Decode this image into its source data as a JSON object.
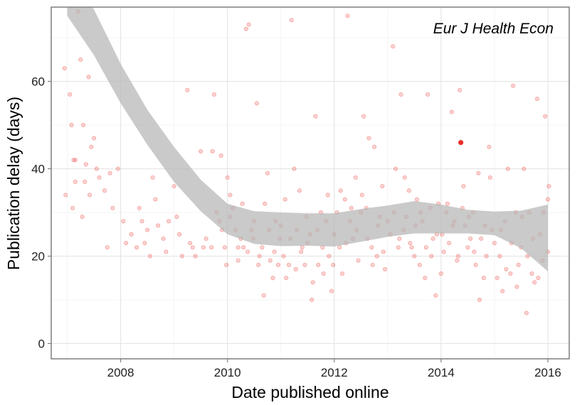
{
  "chart_data": {
    "type": "scatter",
    "xlabel": "Date published online",
    "ylabel": "Publication delay (days)",
    "annotation": "Eur J Health Econ",
    "xlim": [
      2006.7,
      2016.4
    ],
    "ylim": [
      -3.5,
      77
    ],
    "x_ticks": [
      2008,
      2010,
      2012,
      2014,
      2016
    ],
    "y_ticks": [
      0,
      20,
      40,
      60
    ],
    "grid": true,
    "legend": "none",
    "point_color": "#e8302a",
    "band_color": "#b5b5b5",
    "highlight_point": {
      "x": 2014.37,
      "y": 46
    },
    "smooth_band": {
      "x": [
        2007.0,
        2007.5,
        2008.0,
        2008.5,
        2009.0,
        2009.5,
        2010.0,
        2010.5,
        2011.0,
        2011.5,
        2012.0,
        2012.5,
        2013.0,
        2013.5,
        2014.0,
        2014.5,
        2015.0,
        2015.5,
        2016.0
      ],
      "upper": [
        86,
        76.5,
        64,
        53.5,
        45,
        37.5,
        32,
        30.3,
        30,
        29.8,
        29.8,
        30.8,
        31.6,
        32.6,
        31.8,
        30.6,
        30.2,
        30.4,
        31.8
      ],
      "lower": [
        75,
        66,
        55,
        45.5,
        37,
        30.3,
        25,
        22.8,
        22.3,
        22.4,
        22.2,
        23.3,
        24.4,
        25.2,
        25.2,
        25.2,
        24.8,
        21.8,
        16.5
      ]
    },
    "points": [
      [
        2006.95,
        63
      ],
      [
        2007.05,
        57
      ],
      [
        2007.08,
        50
      ],
      [
        2007.12,
        42
      ],
      [
        2007.15,
        37
      ],
      [
        2007.2,
        76
      ],
      [
        2007.25,
        65
      ],
      [
        2007.3,
        50
      ],
      [
        2007.35,
        41
      ],
      [
        2007.4,
        61
      ],
      [
        2007.45,
        45
      ],
      [
        2007.5,
        47
      ],
      [
        2007.55,
        40
      ],
      [
        2007.6,
        38
      ],
      [
        2007.7,
        35
      ],
      [
        2007.75,
        22
      ],
      [
        2007.8,
        39
      ],
      [
        2007.85,
        31
      ],
      [
        2007.95,
        40
      ],
      [
        2006.97,
        34
      ],
      [
        2007.1,
        31
      ],
      [
        2007.15,
        42
      ],
      [
        2007.28,
        29
      ],
      [
        2007.33,
        37
      ],
      [
        2007.42,
        34
      ],
      [
        2008.05,
        28
      ],
      [
        2008.1,
        23
      ],
      [
        2008.2,
        25
      ],
      [
        2008.3,
        22
      ],
      [
        2008.4,
        28
      ],
      [
        2008.5,
        26
      ],
      [
        2008.55,
        20
      ],
      [
        2008.6,
        38
      ],
      [
        2008.7,
        27
      ],
      [
        2008.8,
        24
      ],
      [
        2008.9,
        28
      ],
      [
        2009.0,
        36
      ],
      [
        2009.05,
        29
      ],
      [
        2009.1,
        25
      ],
      [
        2009.15,
        20
      ],
      [
        2009.25,
        58
      ],
      [
        2008.35,
        31
      ],
      [
        2008.45,
        23
      ],
      [
        2008.65,
        33
      ],
      [
        2008.85,
        21
      ],
      [
        2009.3,
        23
      ],
      [
        2009.35,
        22
      ],
      [
        2009.4,
        20
      ],
      [
        2009.5,
        44
      ],
      [
        2009.6,
        24
      ],
      [
        2009.7,
        22
      ],
      [
        2009.75,
        57
      ],
      [
        2009.8,
        30
      ],
      [
        2009.85,
        28
      ],
      [
        2009.9,
        26
      ],
      [
        2009.95,
        22
      ],
      [
        2009.98,
        18
      ],
      [
        2009.72,
        44
      ],
      [
        2009.88,
        43
      ],
      [
        2009.55,
        22
      ],
      [
        2010.0,
        38
      ],
      [
        2010.05,
        29
      ],
      [
        2010.1,
        31
      ],
      [
        2010.15,
        26
      ],
      [
        2010.2,
        19
      ],
      [
        2010.25,
        24
      ],
      [
        2010.3,
        22
      ],
      [
        2010.35,
        72
      ],
      [
        2010.4,
        73
      ],
      [
        2010.45,
        26
      ],
      [
        2010.5,
        28
      ],
      [
        2010.55,
        55
      ],
      [
        2010.6,
        20
      ],
      [
        2010.65,
        22
      ],
      [
        2010.7,
        32
      ],
      [
        2010.75,
        39
      ],
      [
        2010.8,
        19
      ],
      [
        2010.85,
        15
      ],
      [
        2010.9,
        28
      ],
      [
        2010.95,
        18
      ],
      [
        2010.05,
        34
      ],
      [
        2010.2,
        22
      ],
      [
        2010.28,
        32
      ],
      [
        2010.38,
        21
      ],
      [
        2010.48,
        24
      ],
      [
        2010.58,
        18
      ],
      [
        2010.68,
        11
      ],
      [
        2010.78,
        26
      ],
      [
        2010.88,
        21
      ],
      [
        2010.98,
        24
      ],
      [
        2011.0,
        27
      ],
      [
        2011.05,
        20
      ],
      [
        2011.1,
        15
      ],
      [
        2011.15,
        18
      ],
      [
        2011.2,
        74
      ],
      [
        2011.25,
        40
      ],
      [
        2011.3,
        26
      ],
      [
        2011.35,
        35
      ],
      [
        2011.4,
        22
      ],
      [
        2011.45,
        18
      ],
      [
        2011.5,
        23
      ],
      [
        2011.55,
        25
      ],
      [
        2011.6,
        14
      ],
      [
        2011.65,
        52
      ],
      [
        2011.7,
        18
      ],
      [
        2011.75,
        30
      ],
      [
        2011.8,
        16
      ],
      [
        2011.85,
        28
      ],
      [
        2011.9,
        20
      ],
      [
        2011.95,
        12
      ],
      [
        2011.08,
        33
      ],
      [
        2011.18,
        24
      ],
      [
        2011.28,
        17
      ],
      [
        2011.38,
        21
      ],
      [
        2011.48,
        29
      ],
      [
        2011.58,
        10
      ],
      [
        2011.68,
        26
      ],
      [
        2011.78,
        22
      ],
      [
        2011.88,
        34
      ],
      [
        2011.98,
        18
      ],
      [
        2012.0,
        25
      ],
      [
        2012.05,
        30
      ],
      [
        2012.1,
        22
      ],
      [
        2012.15,
        16
      ],
      [
        2012.2,
        33
      ],
      [
        2012.25,
        75
      ],
      [
        2012.3,
        28
      ],
      [
        2012.35,
        24
      ],
      [
        2012.4,
        38
      ],
      [
        2012.45,
        19
      ],
      [
        2012.5,
        30
      ],
      [
        2012.55,
        52
      ],
      [
        2012.6,
        31
      ],
      [
        2012.65,
        47
      ],
      [
        2012.7,
        22
      ],
      [
        2012.75,
        45
      ],
      [
        2012.8,
        20
      ],
      [
        2012.85,
        29
      ],
      [
        2012.9,
        36
      ],
      [
        2012.95,
        17
      ],
      [
        2012.12,
        35
      ],
      [
        2012.22,
        23
      ],
      [
        2012.32,
        31
      ],
      [
        2012.42,
        26
      ],
      [
        2012.52,
        34
      ],
      [
        2012.62,
        24
      ],
      [
        2012.72,
        18
      ],
      [
        2012.82,
        27
      ],
      [
        2012.92,
        21
      ],
      [
        2013.0,
        28
      ],
      [
        2013.05,
        25
      ],
      [
        2013.1,
        68
      ],
      [
        2013.15,
        40
      ],
      [
        2013.2,
        22
      ],
      [
        2013.25,
        57
      ],
      [
        2013.3,
        26
      ],
      [
        2013.35,
        29
      ],
      [
        2013.4,
        35
      ],
      [
        2013.45,
        22
      ],
      [
        2013.5,
        20
      ],
      [
        2013.55,
        33
      ],
      [
        2013.6,
        18
      ],
      [
        2013.65,
        28
      ],
      [
        2013.7,
        15
      ],
      [
        2013.75,
        57
      ],
      [
        2013.8,
        31
      ],
      [
        2013.85,
        24
      ],
      [
        2013.9,
        11
      ],
      [
        2013.95,
        32
      ],
      [
        2013.12,
        30
      ],
      [
        2013.22,
        24
      ],
      [
        2013.32,
        38
      ],
      [
        2013.42,
        23
      ],
      [
        2013.52,
        27
      ],
      [
        2013.62,
        30
      ],
      [
        2013.72,
        22
      ],
      [
        2013.82,
        20
      ],
      [
        2013.92,
        25
      ],
      [
        2014.0,
        16
      ],
      [
        2014.05,
        21
      ],
      [
        2014.1,
        30
      ],
      [
        2014.15,
        23
      ],
      [
        2014.2,
        53
      ],
      [
        2014.25,
        28
      ],
      [
        2014.3,
        19
      ],
      [
        2014.35,
        58
      ],
      [
        2014.4,
        31
      ],
      [
        2014.45,
        27
      ],
      [
        2014.5,
        22
      ],
      [
        2014.55,
        24
      ],
      [
        2014.6,
        30
      ],
      [
        2014.65,
        18
      ],
      [
        2014.7,
        39
      ],
      [
        2014.75,
        24
      ],
      [
        2014.8,
        15
      ],
      [
        2014.85,
        20
      ],
      [
        2014.9,
        45
      ],
      [
        2014.95,
        26
      ],
      [
        2014.02,
        25
      ],
      [
        2014.12,
        32
      ],
      [
        2014.22,
        27
      ],
      [
        2014.32,
        20
      ],
      [
        2014.42,
        36
      ],
      [
        2014.52,
        29
      ],
      [
        2014.62,
        21
      ],
      [
        2014.72,
        10
      ],
      [
        2014.82,
        27
      ],
      [
        2014.92,
        38
      ],
      [
        2015.0,
        23
      ],
      [
        2015.05,
        15
      ],
      [
        2015.1,
        20
      ],
      [
        2015.15,
        12
      ],
      [
        2015.2,
        28
      ],
      [
        2015.25,
        40
      ],
      [
        2015.3,
        16
      ],
      [
        2015.35,
        59
      ],
      [
        2015.4,
        30
      ],
      [
        2015.45,
        18
      ],
      [
        2015.5,
        22
      ],
      [
        2015.55,
        40
      ],
      [
        2015.6,
        7
      ],
      [
        2015.65,
        30
      ],
      [
        2015.7,
        16
      ],
      [
        2015.75,
        14
      ],
      [
        2015.8,
        56
      ],
      [
        2015.85,
        25
      ],
      [
        2015.9,
        19
      ],
      [
        2015.95,
        52
      ],
      [
        2016.0,
        33
      ],
      [
        2016.02,
        36
      ],
      [
        2015.12,
        26
      ],
      [
        2015.22,
        17
      ],
      [
        2015.32,
        23
      ],
      [
        2015.42,
        13
      ],
      [
        2015.52,
        29
      ],
      [
        2015.62,
        20
      ],
      [
        2015.72,
        24
      ],
      [
        2015.82,
        15
      ],
      [
        2015.92,
        30
      ],
      [
        2016.0,
        21
      ]
    ]
  }
}
